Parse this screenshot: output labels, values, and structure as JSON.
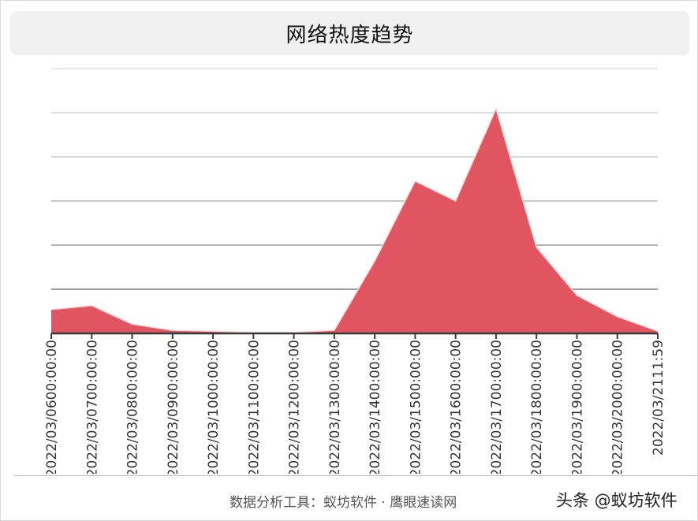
{
  "header": {
    "title": "网络热度趋势"
  },
  "footer": {
    "source_text": "数据分析工具：蚁坊软件 · 鹰眼速读网",
    "watermark": "头条 @蚁坊软件"
  },
  "colors": {
    "area_fill": "#e05560",
    "area_stroke": "#f7d6d8",
    "title_bg": "#f0f0f0",
    "axis": "#3a3a3a"
  },
  "chart_data": {
    "type": "area",
    "title": "网络热度趋势",
    "xlabel": "",
    "ylabel": "",
    "categories": [
      "2022/03/06 00:00:00",
      "2022/03/07 00:00:00",
      "2022/03/08 00:00:00",
      "2022/03/09 00:00:00",
      "2022/03/10 00:00:00",
      "2022/03/11 00:00:00",
      "2022/03/12 00:00:00",
      "2022/03/13 00:00:00",
      "2022/03/14 00:00:00",
      "2022/03/15 00:00:00",
      "2022/03/16 00:00:00",
      "2022/03/17 00:00:00",
      "2022/03/18 00:00:00",
      "2022/03/19 00:00:00",
      "2022/03/20 00:00:00",
      "2022/03/21 11:59"
    ],
    "tick_labels": [
      "2022/03/0600:00:00",
      "2022/03/0700:00:00",
      "2022/03/0800:00:00",
      "2022/03/0900:00:00",
      "2022/03/1000:00:00",
      "2022/03/1100:00:00",
      "2022/03/1200:00:00",
      "2022/03/1300:00:00",
      "2022/03/1400:00:00",
      "2022/03/1500:00:00",
      "2022/03/1600:00:00",
      "2022/03/1700:00:00",
      "2022/03/1800:00:00",
      "2022/03/1900:00:00",
      "2022/03/2000:00:00",
      "2022/03/2111:59"
    ],
    "series": [
      {
        "name": "网络热度",
        "values": [
          0.54,
          0.63,
          0.21,
          0.07,
          0.05,
          0.02,
          0.02,
          0.07,
          1.64,
          3.45,
          3.0,
          5.09,
          1.95,
          0.86,
          0.38,
          0.05
        ]
      }
    ],
    "ylim": [
      0,
      6
    ],
    "y_gridlines": 6,
    "y_tick_labels_visible": false,
    "grid": true,
    "legend": "none"
  }
}
